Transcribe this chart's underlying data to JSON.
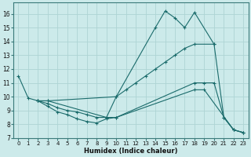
{
  "bg_color": "#cceaea",
  "grid_color": "#aed4d4",
  "line_color": "#1a6b6b",
  "xlabel": "Humidex (Indice chaleur)",
  "xlim": [
    -0.5,
    23.5
  ],
  "ylim": [
    7,
    16.8
  ],
  "yticks": [
    7,
    8,
    9,
    10,
    11,
    12,
    13,
    14,
    15,
    16
  ],
  "xticks": [
    0,
    1,
    2,
    3,
    4,
    5,
    6,
    7,
    8,
    9,
    10,
    11,
    12,
    13,
    14,
    15,
    16,
    17,
    18,
    19,
    20,
    21,
    22,
    23
  ],
  "series": [
    {
      "x": [
        0,
        1,
        2,
        3,
        9,
        10,
        14,
        15,
        16,
        17,
        18,
        20,
        21,
        22,
        23
      ],
      "y": [
        11.5,
        9.9,
        9.7,
        9.7,
        8.5,
        10.0,
        15.0,
        16.2,
        15.7,
        15.0,
        16.1,
        13.8,
        8.5,
        7.6,
        7.4
      ]
    },
    {
      "x": [
        2,
        3,
        10,
        11,
        12,
        13,
        14,
        15,
        16,
        17,
        18,
        20
      ],
      "y": [
        9.7,
        9.7,
        10.0,
        10.5,
        11.0,
        11.5,
        12.0,
        12.5,
        13.0,
        13.5,
        13.8,
        13.8
      ]
    },
    {
      "x": [
        2,
        3,
        4,
        5,
        6,
        7,
        8,
        9,
        10,
        18,
        19,
        20,
        21,
        22,
        23
      ],
      "y": [
        9.7,
        9.5,
        9.2,
        9.0,
        8.9,
        8.7,
        8.5,
        8.5,
        8.5,
        11.0,
        11.0,
        11.0,
        8.5,
        7.6,
        7.4
      ]
    },
    {
      "x": [
        2,
        3,
        4,
        5,
        6,
        7,
        8,
        9,
        10,
        18,
        19,
        22,
        23
      ],
      "y": [
        9.7,
        9.3,
        8.9,
        8.7,
        8.4,
        8.2,
        8.1,
        8.4,
        8.5,
        10.5,
        10.5,
        7.6,
        7.4
      ]
    }
  ]
}
